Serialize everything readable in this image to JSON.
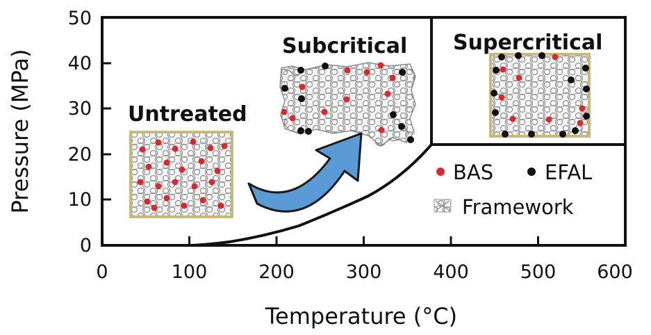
{
  "axes": {
    "x_label": "Temperature (°C)",
    "y_label": "Pressure (MPa)",
    "x_ticks": [
      "0",
      "100",
      "200",
      "300",
      "400",
      "500",
      "600"
    ],
    "y_ticks": [
      "0",
      "10",
      "20",
      "30",
      "40",
      "50"
    ],
    "x_range": [
      0,
      600
    ],
    "y_range": [
      0,
      50
    ]
  },
  "regions": {
    "untreated": "Untreated",
    "subcritical": "Subcritical",
    "supercritical": "Supercritical"
  },
  "phase_boundary": {
    "critical_point": {
      "temperature": 374,
      "pressure": 22.1
    }
  },
  "legend": {
    "bas": "BAS",
    "efal": "EFAL",
    "framework": "Framework"
  },
  "colors": {
    "bas": "#d9292a",
    "efal": "#111111",
    "arrow_fill": "#5b9bd5",
    "framework_line": "#888888",
    "framework_border": "#c8b97a"
  }
}
